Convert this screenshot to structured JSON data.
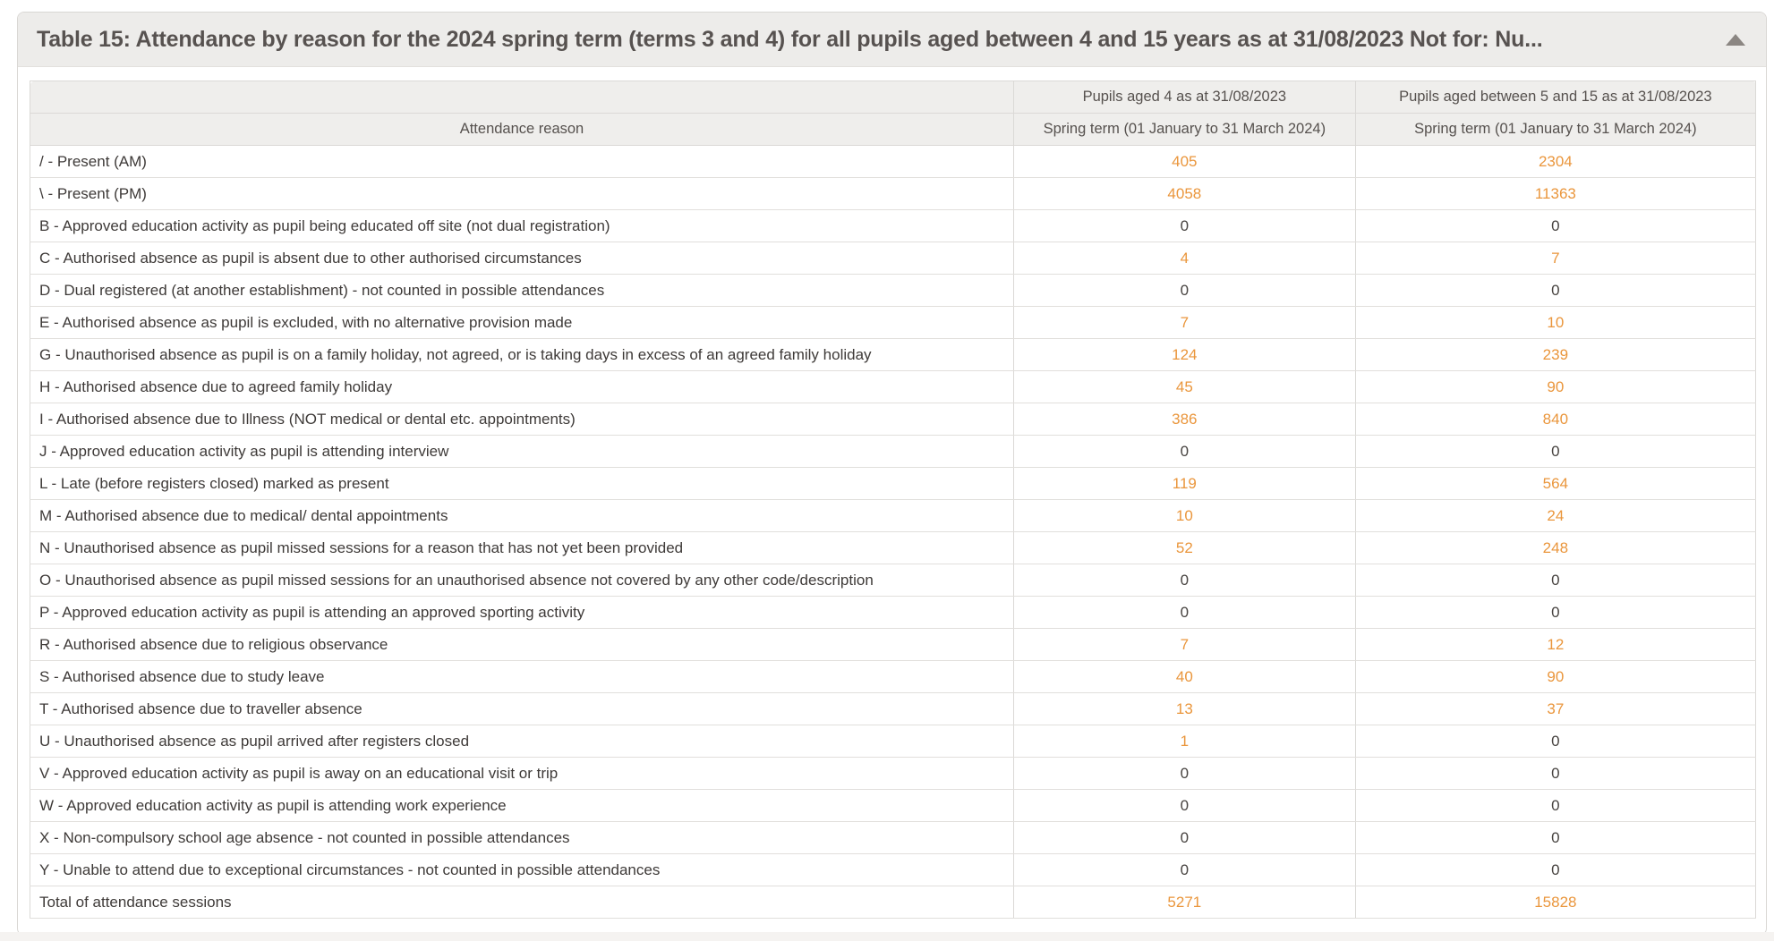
{
  "panel": {
    "title": "Table 15: Attendance by reason for the 2024 spring term (terms 3 and 4) for all pupils aged between 4 and 15 years as at 31/08/2023 Not for: Nu...",
    "collapse_icon": "triangle-up-icon"
  },
  "table": {
    "group_headers": [
      "",
      "Pupils aged 4 as at 31/08/2023",
      "Pupils aged between 5 and 15 as at 31/08/2023"
    ],
    "sub_headers": [
      "Attendance reason",
      "Spring term (01 January to 31 March 2024)",
      "Spring term (01 January to 31 March 2024)"
    ],
    "rows": [
      {
        "reason": "/ - Present (AM)",
        "aged4": "405",
        "aged5_15": "2304"
      },
      {
        "reason": "\\ - Present (PM)",
        "aged4": "4058",
        "aged5_15": "11363"
      },
      {
        "reason": "B - Approved education activity as pupil being educated off site (not dual registration)",
        "aged4": "0",
        "aged5_15": "0"
      },
      {
        "reason": "C - Authorised absence as pupil is absent due to other authorised circumstances",
        "aged4": "4",
        "aged5_15": "7"
      },
      {
        "reason": "D - Dual registered (at another establishment) - not counted in possible attendances",
        "aged4": "0",
        "aged5_15": "0"
      },
      {
        "reason": "E - Authorised absence as pupil is excluded, with no alternative provision made",
        "aged4": "7",
        "aged5_15": "10"
      },
      {
        "reason": "G - Unauthorised absence as pupil is on a family holiday, not agreed, or is taking days in excess of an agreed family holiday",
        "aged4": "124",
        "aged5_15": "239"
      },
      {
        "reason": "H - Authorised absence due to agreed family holiday",
        "aged4": "45",
        "aged5_15": "90"
      },
      {
        "reason": "I - Authorised absence due to Illness (NOT medical or dental etc. appointments)",
        "aged4": "386",
        "aged5_15": "840"
      },
      {
        "reason": "J - Approved education activity as pupil is attending interview",
        "aged4": "0",
        "aged5_15": "0"
      },
      {
        "reason": "L - Late (before registers closed) marked as present",
        "aged4": "119",
        "aged5_15": "564"
      },
      {
        "reason": "M - Authorised absence due to medical/ dental appointments",
        "aged4": "10",
        "aged5_15": "24"
      },
      {
        "reason": "N - Unauthorised absence as pupil missed sessions for a reason that has not yet been provided",
        "aged4": "52",
        "aged5_15": "248"
      },
      {
        "reason": "O - Unauthorised absence as pupil missed sessions for an unauthorised absence not covered by any other code/description",
        "aged4": "0",
        "aged5_15": "0"
      },
      {
        "reason": "P - Approved education activity as pupil is attending an approved sporting activity",
        "aged4": "0",
        "aged5_15": "0"
      },
      {
        "reason": "R - Authorised absence due to religious observance",
        "aged4": "7",
        "aged5_15": "12"
      },
      {
        "reason": "S - Authorised absence due to study leave",
        "aged4": "40",
        "aged5_15": "90"
      },
      {
        "reason": "T - Authorised absence due to traveller absence",
        "aged4": "13",
        "aged5_15": "37"
      },
      {
        "reason": "U - Unauthorised absence as pupil arrived after registers closed",
        "aged4": "1",
        "aged5_15": "0"
      },
      {
        "reason": "V - Approved education activity as pupil is away on an educational visit or trip",
        "aged4": "0",
        "aged5_15": "0"
      },
      {
        "reason": "W - Approved education activity as pupil is attending work experience",
        "aged4": "0",
        "aged5_15": "0"
      },
      {
        "reason": "X - Non-compulsory school age absence - not counted in possible attendances",
        "aged4": "0",
        "aged5_15": "0"
      },
      {
        "reason": "Y - Unable to attend due to exceptional circumstances - not counted in possible attendances",
        "aged4": "0",
        "aged5_15": "0"
      },
      {
        "reason": "Total of attendance sessions",
        "aged4": "5271",
        "aged5_15": "15828"
      }
    ]
  },
  "colors": {
    "accent_orange": "#ea963c",
    "zero_value_text": "#474340",
    "header_background": "#efeeec",
    "panel_header_background": "#edecea",
    "title_text": "#575250"
  }
}
